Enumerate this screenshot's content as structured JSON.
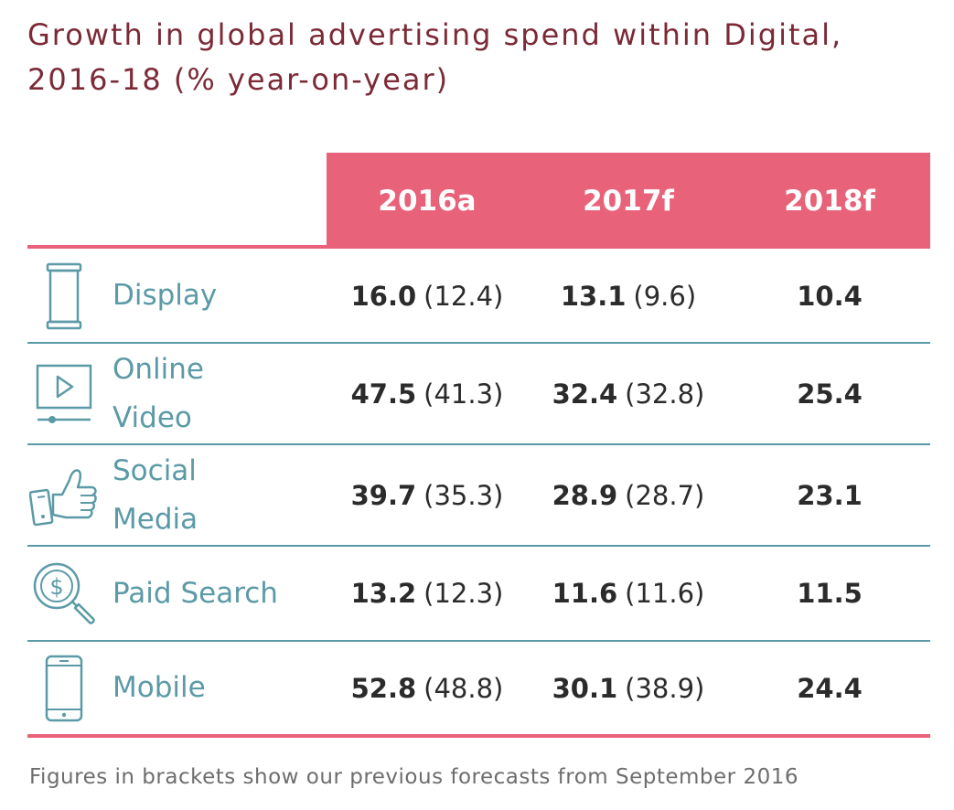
{
  "title": "Growth in global advertising spend within Digital, 2016-18 (% year-on-year)",
  "columns": [
    "2016a",
    "2017f",
    "2018f"
  ],
  "rows": [
    {
      "icon": "display-banner-icon",
      "label_line1": "Display",
      "label_line2": "",
      "v2016": "16.0",
      "p2016": "(12.4)",
      "v2017": "13.1",
      "p2017": "(9.6)",
      "v2018": "10.4"
    },
    {
      "icon": "video-player-icon",
      "label_line1": "Online",
      "label_line2": "Video",
      "v2016": "47.5",
      "p2016": "(41.3)",
      "v2017": "32.4",
      "p2017": "(32.8)",
      "v2018": "25.4"
    },
    {
      "icon": "thumbs-up-phone-icon",
      "label_line1": "Social",
      "label_line2": "Media",
      "v2016": "39.7",
      "p2016": "(35.3)",
      "v2017": "28.9",
      "p2017": "(28.7)",
      "v2018": "23.1"
    },
    {
      "icon": "dollar-magnifier-icon",
      "label_line1": "Paid Search",
      "label_line2": "",
      "v2016": "13.2",
      "p2016": "(12.3)",
      "v2017": "11.6",
      "p2017": "(11.6)",
      "v2018": "11.5"
    },
    {
      "icon": "smartphone-icon",
      "label_line1": "Mobile",
      "label_line2": "",
      "v2016": "52.8",
      "p2016": "(48.8)",
      "v2017": "30.1",
      "p2017": "(38.9)",
      "v2018": "24.4"
    }
  ],
  "footnote": "Figures in brackets show our previous forecasts from September 2016",
  "colors": {
    "title": "#7b2a36",
    "header": "#e8637a",
    "accent": "#5b9aa6",
    "text": "#2b2b2b"
  }
}
